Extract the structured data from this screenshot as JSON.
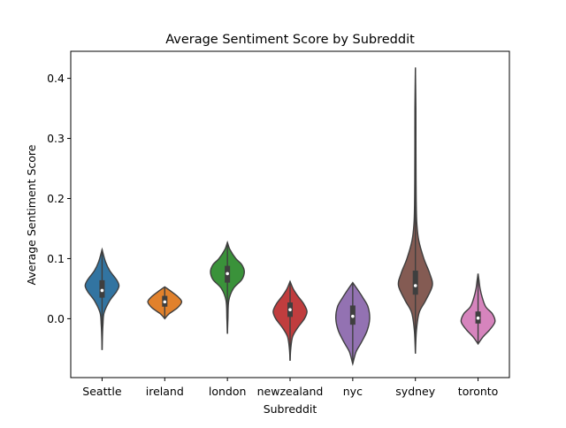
{
  "chart_data": {
    "type": "violin",
    "title": "Average Sentiment Score by Subreddit",
    "xlabel": "Subreddit",
    "ylabel": "Average Sentiment Score",
    "ylim": [
      -0.098,
      0.445
    ],
    "yticks": [
      0.0,
      0.1,
      0.2,
      0.3,
      0.4
    ],
    "ytick_labels": [
      "0.0",
      "0.1",
      "0.2",
      "0.3",
      "0.4"
    ],
    "grid": false,
    "legend": "none",
    "categories": [
      "Seattle",
      "ireland",
      "london",
      "newzealand",
      "nyc",
      "sydney",
      "toronto"
    ],
    "colors": [
      "#3274a1",
      "#e1812c",
      "#3a923a",
      "#c03d3e",
      "#9372b2",
      "#845b53",
      "#d684bd"
    ],
    "violins": [
      {
        "name": "Seattle",
        "min": -0.052,
        "max": 0.115,
        "q1": 0.035,
        "median": 0.047,
        "q3": 0.064,
        "profile": [
          [
            -0.052,
            0.0
          ],
          [
            -0.03,
            0.02
          ],
          [
            -0.01,
            0.05
          ],
          [
            0.01,
            0.12
          ],
          [
            0.03,
            0.45
          ],
          [
            0.045,
            0.85
          ],
          [
            0.055,
            1.0
          ],
          [
            0.065,
            0.85
          ],
          [
            0.08,
            0.45
          ],
          [
            0.095,
            0.2
          ],
          [
            0.115,
            0.0
          ]
        ]
      },
      {
        "name": "ireland",
        "min": 0.0,
        "max": 0.053,
        "q1": 0.02,
        "median": 0.028,
        "q3": 0.038,
        "profile": [
          [
            0.0,
            0.0
          ],
          [
            0.008,
            0.25
          ],
          [
            0.018,
            0.75
          ],
          [
            0.028,
            1.0
          ],
          [
            0.036,
            0.8
          ],
          [
            0.045,
            0.4
          ],
          [
            0.053,
            0.0
          ]
        ]
      },
      {
        "name": "london",
        "min": -0.025,
        "max": 0.127,
        "q1": 0.06,
        "median": 0.075,
        "q3": 0.088,
        "profile": [
          [
            -0.025,
            0.0
          ],
          [
            0.0,
            0.03
          ],
          [
            0.03,
            0.08
          ],
          [
            0.05,
            0.35
          ],
          [
            0.065,
            0.85
          ],
          [
            0.078,
            1.0
          ],
          [
            0.09,
            0.85
          ],
          [
            0.1,
            0.5
          ],
          [
            0.115,
            0.15
          ],
          [
            0.127,
            0.0
          ]
        ]
      },
      {
        "name": "newzealand",
        "min": -0.07,
        "max": 0.062,
        "q1": 0.003,
        "median": 0.015,
        "q3": 0.027,
        "profile": [
          [
            -0.07,
            0.0
          ],
          [
            -0.05,
            0.04
          ],
          [
            -0.03,
            0.15
          ],
          [
            -0.015,
            0.45
          ],
          [
            0.0,
            0.85
          ],
          [
            0.012,
            1.0
          ],
          [
            0.025,
            0.8
          ],
          [
            0.038,
            0.45
          ],
          [
            0.05,
            0.18
          ],
          [
            0.062,
            0.0
          ]
        ]
      },
      {
        "name": "nyc",
        "min": -0.075,
        "max": 0.06,
        "q1": -0.01,
        "median": 0.004,
        "q3": 0.022,
        "profile": [
          [
            -0.075,
            0.0
          ],
          [
            -0.055,
            0.2
          ],
          [
            -0.04,
            0.5
          ],
          [
            -0.02,
            0.85
          ],
          [
            0.0,
            1.0
          ],
          [
            0.02,
            0.9
          ],
          [
            0.035,
            0.6
          ],
          [
            0.048,
            0.3
          ],
          [
            0.06,
            0.0
          ]
        ]
      },
      {
        "name": "sydney",
        "min": -0.058,
        "max": 0.418,
        "q1": 0.04,
        "median": 0.055,
        "q3": 0.08,
        "profile": [
          [
            -0.058,
            0.0
          ],
          [
            -0.02,
            0.06
          ],
          [
            0.01,
            0.22
          ],
          [
            0.03,
            0.6
          ],
          [
            0.055,
            1.0
          ],
          [
            0.075,
            0.85
          ],
          [
            0.1,
            0.5
          ],
          [
            0.13,
            0.2
          ],
          [
            0.16,
            0.08
          ],
          [
            0.2,
            0.045
          ],
          [
            0.25,
            0.035
          ],
          [
            0.3,
            0.03
          ],
          [
            0.35,
            0.028
          ],
          [
            0.418,
            0.0
          ]
        ]
      },
      {
        "name": "toronto",
        "min": -0.042,
        "max": 0.075,
        "q1": -0.008,
        "median": 0.001,
        "q3": 0.012,
        "profile": [
          [
            -0.042,
            0.0
          ],
          [
            -0.03,
            0.3
          ],
          [
            -0.018,
            0.7
          ],
          [
            -0.005,
            1.0
          ],
          [
            0.008,
            0.85
          ],
          [
            0.02,
            0.45
          ],
          [
            0.035,
            0.25
          ],
          [
            0.05,
            0.12
          ],
          [
            0.065,
            0.05
          ],
          [
            0.075,
            0.0
          ]
        ]
      }
    ]
  }
}
